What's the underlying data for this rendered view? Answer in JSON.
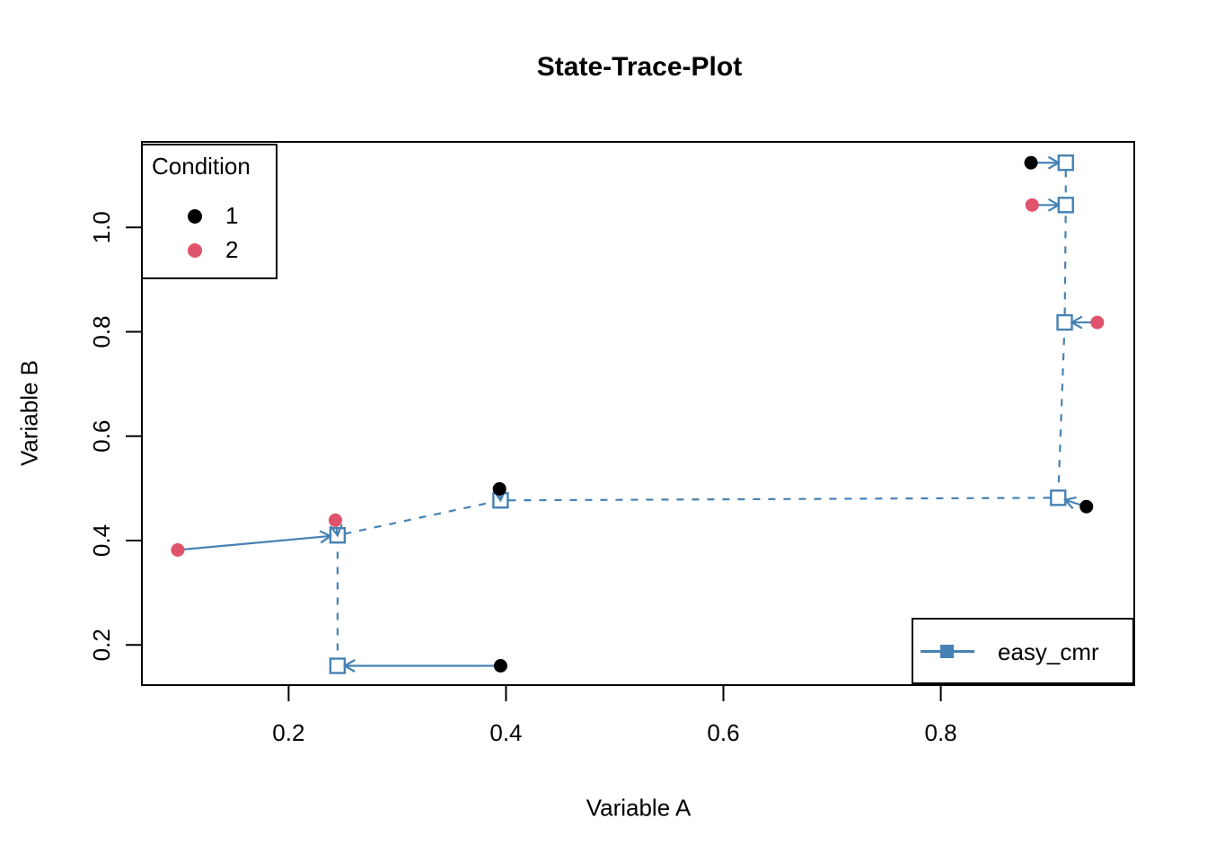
{
  "chart_data": {
    "type": "scatter",
    "title": "State-Trace-Plot",
    "xlabel": "Variable A",
    "ylabel": "Variable B",
    "xlim": [
      0.065,
      0.978
    ],
    "ylim": [
      0.123,
      1.164
    ],
    "grid": false,
    "xticks": [
      0.2,
      0.4,
      0.6,
      0.8
    ],
    "xtick_labels": [
      "0.2",
      "0.4",
      "0.6",
      "0.8"
    ],
    "yticks": [
      0.2,
      0.4,
      0.6,
      0.8,
      1.0
    ],
    "ytick_labels": [
      "0.2",
      "0.4",
      "0.6",
      "0.8",
      "1.0"
    ],
    "colors": {
      "condition1": "#000000",
      "condition2": "#DF536B",
      "model": "#4682B4",
      "axis": "#000000",
      "background": "#ffffff"
    },
    "series": [
      {
        "name": "condition-1-observed",
        "legend_label": "1",
        "marker": "filled-circle",
        "color": "#000000",
        "points": [
          [
            0.395,
            0.16
          ],
          [
            0.394,
            0.499
          ],
          [
            0.934,
            0.465
          ],
          [
            0.883,
            1.124
          ]
        ]
      },
      {
        "name": "condition-2-observed",
        "legend_label": "2",
        "marker": "filled-circle",
        "color": "#DF536B",
        "points": [
          [
            0.098,
            0.382
          ],
          [
            0.243,
            0.439
          ],
          [
            0.944,
            0.818
          ],
          [
            0.884,
            1.043
          ]
        ]
      },
      {
        "name": "easy_cmr-predicted",
        "legend_label": "easy_cmr",
        "marker": "open-square",
        "linestyle": "dashed",
        "color": "#4682B4",
        "points": [
          [
            0.245,
            0.16
          ],
          [
            0.245,
            0.41
          ],
          [
            0.395,
            0.477
          ],
          [
            0.908,
            0.482
          ],
          [
            0.914,
            0.818
          ],
          [
            0.915,
            1.043
          ],
          [
            0.915,
            1.124
          ]
        ]
      }
    ],
    "arrows": [
      {
        "from": [
          0.395,
          0.16
        ],
        "to": [
          0.245,
          0.16
        ]
      },
      {
        "from": [
          0.098,
          0.382
        ],
        "to": [
          0.245,
          0.41
        ]
      },
      {
        "from": [
          0.243,
          0.439
        ],
        "to": [
          0.245,
          0.41
        ]
      },
      {
        "from": [
          0.394,
          0.499
        ],
        "to": [
          0.395,
          0.477
        ]
      },
      {
        "from": [
          0.934,
          0.465
        ],
        "to": [
          0.908,
          0.482
        ]
      },
      {
        "from": [
          0.944,
          0.818
        ],
        "to": [
          0.914,
          0.818
        ]
      },
      {
        "from": [
          0.884,
          1.043
        ],
        "to": [
          0.915,
          1.043
        ]
      },
      {
        "from": [
          0.883,
          1.124
        ],
        "to": [
          0.915,
          1.124
        ]
      }
    ],
    "legend_condition": {
      "title": "Condition",
      "entries": [
        {
          "label": "1",
          "color": "#000000"
        },
        {
          "label": "2",
          "color": "#DF536B"
        }
      ],
      "position": "top-left"
    },
    "legend_model": {
      "entries": [
        {
          "label": "easy_cmr",
          "color": "#4682B4"
        }
      ],
      "position": "bottom-right"
    }
  }
}
